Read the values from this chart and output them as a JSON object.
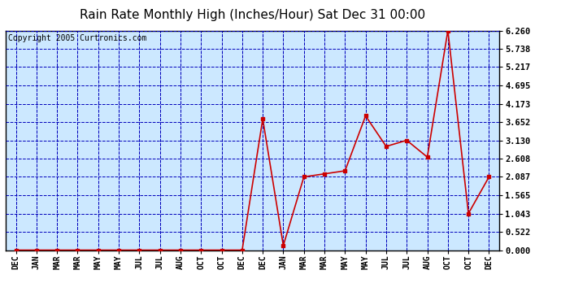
{
  "title": "Rain Rate Monthly High (Inches/Hour) Sat Dec 31 00:00",
  "copyright": "Copyright 2005 Curtronics.com",
  "x_labels": [
    "DEC",
    "JAN",
    "MAR",
    "MAR",
    "MAY",
    "MAY",
    "JUL",
    "JUL",
    "AUG",
    "OCT",
    "OCT",
    "DEC",
    "DEC",
    "JAN",
    "MAR",
    "MAR",
    "MAY",
    "MAY",
    "JUL",
    "JUL",
    "AUG",
    "OCT",
    "OCT",
    "DEC"
  ],
  "y_values": [
    0.0,
    0.0,
    0.0,
    0.0,
    0.0,
    0.0,
    0.0,
    0.0,
    0.0,
    0.0,
    0.0,
    0.0,
    3.74,
    0.13,
    2.087,
    2.174,
    2.26,
    3.826,
    2.956,
    3.13,
    2.652,
    6.26,
    1.043,
    2.087
  ],
  "y_ticks": [
    0.0,
    0.522,
    1.043,
    1.565,
    2.087,
    2.608,
    3.13,
    3.652,
    4.173,
    4.695,
    5.217,
    5.738,
    6.26
  ],
  "ylim": [
    0.0,
    6.26
  ],
  "line_color": "#cc0000",
  "marker_color": "#cc0000",
  "grid_color": "#0000bb",
  "plot_bg": "#cce8ff",
  "title_fontsize": 11,
  "copyright_fontsize": 7
}
